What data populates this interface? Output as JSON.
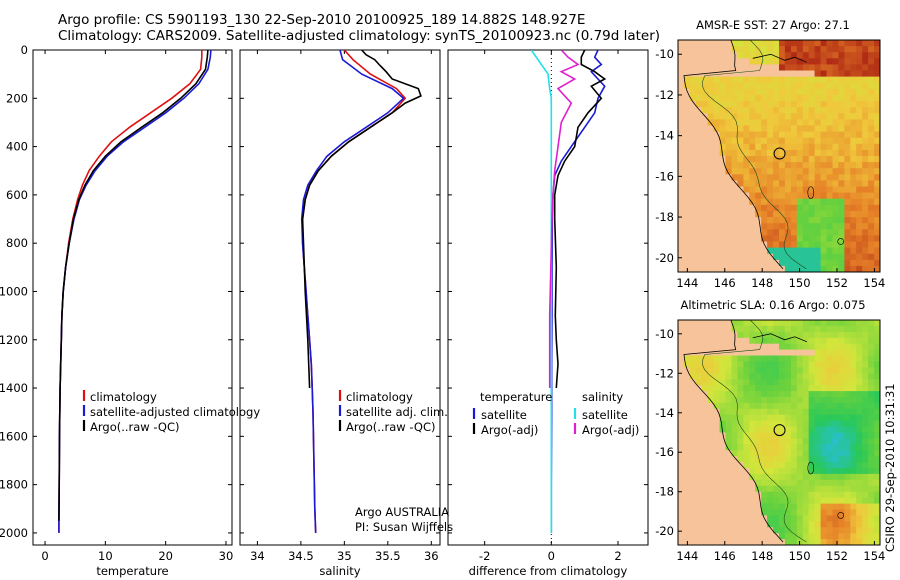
{
  "header": {
    "line1": "Argo profile: CS 5901193_130 22-Sep-2010 20100925_189 14.882S 148.927E",
    "line2": "Climatology: CARS2009. Satellite-adjusted climatology: synTS_20100923.nc (0.79d later)"
  },
  "side_stamp": "CSIRO 29-Sep-2010 10:31:31",
  "colors": {
    "climatology": "#e01010",
    "satellite": "#1a1ad6",
    "argo": "#000000",
    "salinity_sat": "#22e0e8",
    "salinity_argo": "#e020d0",
    "land": "#f6c39a"
  },
  "chart_data": [
    {
      "type": "line",
      "id": "temperature",
      "xlabel": "temperature",
      "ylabel": "",
      "xlim": [
        -2,
        31
      ],
      "ylim": [
        2050,
        0
      ],
      "xticks": [
        "0",
        "10",
        "20",
        "30"
      ],
      "xtick_values": [
        0,
        10,
        20,
        30
      ],
      "yticks": [
        "0",
        "200",
        "400",
        "600",
        "800",
        "1000",
        "1200",
        "1400",
        "1600",
        "1800",
        "2000"
      ],
      "ytick_values": [
        0,
        200,
        400,
        600,
        800,
        1000,
        1200,
        1400,
        1600,
        1800,
        2000
      ],
      "legend": [
        "climatology",
        "satellite-adjusted climatology",
        "Argo(..raw -QC)"
      ],
      "series": [
        {
          "name": "climatology",
          "color_key": "climatology",
          "x": [
            26,
            26,
            25.8,
            24,
            21,
            17.5,
            14,
            11,
            9,
            7.3,
            6.2,
            5.4,
            4.6,
            3.9,
            3.4,
            3.0,
            2.8,
            2.7,
            2.6,
            2.5,
            2.45,
            2.4,
            2.35,
            2.3,
            2.3
          ],
          "y": [
            0,
            30,
            80,
            140,
            200,
            260,
            320,
            380,
            440,
            500,
            560,
            620,
            700,
            800,
            900,
            1000,
            1100,
            1200,
            1300,
            1400,
            1500,
            1600,
            1800,
            1950,
            2000
          ]
        },
        {
          "name": "satellite-adjusted climatology",
          "color_key": "satellite",
          "x": [
            27.5,
            27.4,
            27,
            25.5,
            23,
            20,
            16.5,
            13,
            10.3,
            8.3,
            6.8,
            5.7,
            4.8,
            4.0,
            3.4,
            3.0,
            2.8,
            2.7,
            2.6,
            2.5,
            2.45,
            2.4,
            2.35,
            2.3,
            2.3
          ],
          "y": [
            0,
            30,
            80,
            140,
            200,
            260,
            320,
            380,
            440,
            500,
            560,
            620,
            700,
            800,
            900,
            1000,
            1100,
            1200,
            1300,
            1400,
            1500,
            1600,
            1800,
            1950,
            2000
          ]
        },
        {
          "name": "Argo(..raw -QC)",
          "color_key": "argo",
          "x": [
            27,
            26.9,
            26.6,
            25,
            22.5,
            19.5,
            16,
            12.6,
            10,
            8,
            6.6,
            5.6,
            4.7,
            4.0,
            3.4,
            3.0,
            2.8,
            2.7,
            2.6,
            2.5,
            2.45,
            2.4,
            2.35,
            2.3
          ],
          "y": [
            0,
            30,
            80,
            140,
            200,
            260,
            320,
            380,
            440,
            500,
            560,
            620,
            700,
            800,
            900,
            1000,
            1100,
            1200,
            1300,
            1400,
            1500,
            1600,
            1800,
            1950
          ]
        }
      ]
    },
    {
      "type": "line",
      "id": "salinity",
      "xlabel": "salinity",
      "ylabel": "",
      "xlim": [
        33.8,
        36.1
      ],
      "ylim": [
        2050,
        0
      ],
      "xticks": [
        "34",
        "34.5",
        "35",
        "35.5",
        "36"
      ],
      "xtick_values": [
        34,
        34.5,
        35,
        35.5,
        36
      ],
      "legend": [
        "climatology",
        "satellite adj. clim.",
        "Argo(..raw -QC)"
      ],
      "annotation_lines": [
        "Argo AUSTRALIA",
        "PI: Susan Wijffels"
      ],
      "series": [
        {
          "name": "climatology",
          "color_key": "climatology",
          "x": [
            35.0,
            35.1,
            35.3,
            35.6,
            35.7,
            35.55,
            35.3,
            35.05,
            34.85,
            34.7,
            34.6,
            34.55,
            34.52,
            34.52,
            34.54,
            34.56,
            34.58,
            34.6,
            34.62,
            34.63,
            34.64,
            34.65,
            34.66,
            34.67
          ],
          "y": [
            0,
            40,
            100,
            160,
            200,
            260,
            320,
            380,
            440,
            500,
            560,
            620,
            700,
            800,
            900,
            1000,
            1100,
            1200,
            1300,
            1400,
            1500,
            1700,
            1900,
            2000
          ]
        },
        {
          "name": "satellite adj. clim.",
          "color_key": "satellite",
          "x": [
            34.95,
            34.98,
            35.2,
            35.55,
            35.68,
            35.5,
            35.25,
            35.0,
            34.8,
            34.68,
            34.58,
            34.53,
            34.51,
            34.52,
            34.54,
            34.56,
            34.58,
            34.6,
            34.62,
            34.63,
            34.64,
            34.65,
            34.66,
            34.67
          ],
          "y": [
            0,
            40,
            100,
            160,
            200,
            260,
            320,
            380,
            440,
            500,
            560,
            620,
            700,
            800,
            900,
            1000,
            1100,
            1200,
            1300,
            1400,
            1500,
            1700,
            1900,
            2000
          ]
        },
        {
          "name": "Argo(..raw -QC)",
          "color_key": "argo",
          "x": [
            35.2,
            35.25,
            35.35,
            35.4,
            35.48,
            35.55,
            35.85,
            35.88,
            35.7,
            35.55,
            35.3,
            35.05,
            34.85,
            34.7,
            34.6,
            34.55,
            34.52,
            34.53,
            34.55,
            34.58,
            34.6
          ],
          "y": [
            0,
            20,
            40,
            60,
            90,
            120,
            160,
            190,
            220,
            260,
            320,
            380,
            440,
            500,
            560,
            620,
            700,
            800,
            1000,
            1200,
            1400
          ]
        }
      ]
    },
    {
      "type": "line",
      "id": "difference",
      "xlabel": "difference from climatology",
      "xlim": [
        -3.1,
        2.9
      ],
      "ylim": [
        2050,
        0
      ],
      "xticks": [
        "-2",
        "0",
        "2"
      ],
      "xtick_values": [
        -2,
        0,
        2
      ],
      "legend_left_title": "temperature",
      "legend_right_title": "salinity",
      "legend": [
        "satellite",
        "Argo(-adj)",
        "satellite",
        "Argo(-adj)"
      ],
      "series": [
        {
          "name": "temperature satellite",
          "color_key": "satellite",
          "x": [
            1.4,
            1.3,
            1.5,
            1.2,
            1.4,
            1.6,
            1.4,
            1.3,
            1.0,
            0.6,
            0.3,
            0.1,
            0.05,
            0.03,
            0.02,
            0.02,
            0.01,
            0.01,
            0.0,
            0.0
          ],
          "y": [
            0,
            30,
            60,
            90,
            120,
            150,
            200,
            260,
            320,
            400,
            460,
            520,
            600,
            700,
            900,
            1100,
            1300,
            1500,
            1800,
            2000
          ]
        },
        {
          "name": "temperature Argo(-adj)",
          "color_key": "argo",
          "x": [
            1.0,
            0.9,
            0.9,
            1.3,
            1.6,
            1.2,
            1.5,
            1.1,
            0.8,
            0.7,
            0.4,
            0.2,
            0.1,
            0.1,
            0.15,
            0.12,
            0.15,
            0.2,
            0.15
          ],
          "y": [
            0,
            30,
            60,
            90,
            120,
            150,
            200,
            260,
            320,
            400,
            460,
            520,
            600,
            700,
            900,
            1100,
            1200,
            1300,
            1400
          ]
        },
        {
          "name": "salinity satellite",
          "color_key": "salinity_sat",
          "x": [
            -0.6,
            -0.4,
            -0.1,
            -0.05,
            0.0,
            0.0,
            0.0,
            0.0,
            0.0,
            0.0,
            0.0,
            0.0,
            0.0,
            0.0
          ],
          "y": [
            0,
            40,
            100,
            160,
            200,
            300,
            400,
            600,
            800,
            1000,
            1200,
            1500,
            1800,
            2000
          ]
        },
        {
          "name": "salinity Argo(-adj)",
          "color_key": "salinity_argo",
          "x": [
            0.3,
            0.5,
            0.8,
            0.3,
            0.7,
            0.2,
            0.6,
            0.3,
            0.2,
            0.1,
            0.05,
            0.02,
            -0.05,
            -0.05
          ],
          "y": [
            0,
            30,
            60,
            90,
            120,
            160,
            220,
            300,
            400,
            500,
            600,
            700,
            1100,
            1400
          ]
        }
      ]
    },
    {
      "type": "heatmap",
      "id": "sst_map",
      "title": "AMSR-E SST: 27 Argo: 27.1",
      "xticks": [
        "144",
        "146",
        "148",
        "150",
        "152",
        "154"
      ],
      "yticks": [
        "-10",
        "-12",
        "-14",
        "-16",
        "-18",
        "-20"
      ],
      "xlim": [
        143.5,
        154.3
      ],
      "ylim": [
        -20.7,
        -9.3
      ],
      "marker": {
        "lon": 148.93,
        "lat": -14.88
      }
    },
    {
      "type": "heatmap",
      "id": "sla_map",
      "title": "Altimetric SLA: 0.16 Argo: 0.075",
      "xticks": [
        "144",
        "146",
        "148",
        "150",
        "152",
        "154"
      ],
      "yticks": [
        "-10",
        "-12",
        "-14",
        "-16",
        "-18",
        "-20"
      ],
      "xlim": [
        143.5,
        154.3
      ],
      "ylim": [
        -20.7,
        -9.3
      ],
      "marker": {
        "lon": 148.93,
        "lat": -14.88
      }
    }
  ]
}
